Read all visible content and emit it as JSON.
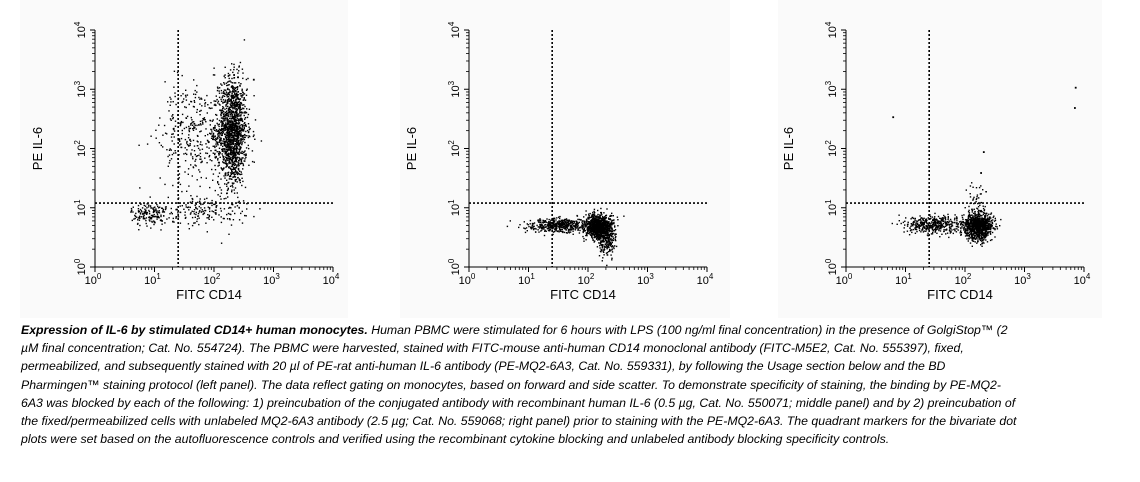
{
  "chart_data": [
    {
      "type": "scatter",
      "panel": "left",
      "xlabel": "FITC CD14",
      "ylabel": "PE IL-6",
      "xscale": "log",
      "yscale": "log",
      "xlim": [
        1,
        10000
      ],
      "ylim": [
        1,
        10000
      ],
      "xticks": [
        "10",
        "10",
        "10",
        "10",
        "10"
      ],
      "xtick_exponents": [
        "0",
        "1",
        "2",
        "3",
        "4"
      ],
      "yticks": [
        "10",
        "10",
        "10",
        "10",
        "10"
      ],
      "ytick_exponents": [
        "0",
        "1",
        "2",
        "3",
        "4"
      ],
      "quadrant_x": 25,
      "quadrant_y": 12,
      "clusters": [
        {
          "x": 200,
          "y": 200,
          "x_spread": 0.12,
          "y_spread": 0.45,
          "n": 1400
        },
        {
          "x": 60,
          "y": 150,
          "x_spread": 0.35,
          "y_spread": 0.45,
          "n": 350
        },
        {
          "x": 8,
          "y": 8,
          "x_spread": 0.15,
          "y_spread": 0.1,
          "n": 160
        },
        {
          "x": 70,
          "y": 9,
          "x_spread": 0.35,
          "y_spread": 0.12,
          "n": 160
        },
        {
          "x": 30,
          "y": 400,
          "x_spread": 0.35,
          "y_spread": 0.3,
          "n": 60
        }
      ],
      "points": [
        [
          450,
          1500
        ],
        [
          210,
          1800
        ],
        [
          245,
          1650
        ]
      ]
    },
    {
      "type": "scatter",
      "panel": "middle",
      "xlabel": "FITC CD14",
      "ylabel": "PE IL-6",
      "xscale": "log",
      "yscale": "log",
      "xlim": [
        1,
        10000
      ],
      "ylim": [
        1,
        10000
      ],
      "xticks": [
        "10",
        "10",
        "10",
        "10",
        "10"
      ],
      "xtick_exponents": [
        "0",
        "1",
        "2",
        "3",
        "4"
      ],
      "yticks": [
        "10",
        "10",
        "10",
        "10",
        "10"
      ],
      "ytick_exponents": [
        "0",
        "1",
        "2",
        "3",
        "4"
      ],
      "quadrant_x": 25,
      "quadrant_y": 12,
      "clusters": [
        {
          "x": 150,
          "y": 5,
          "x_spread": 0.12,
          "y_spread": 0.1,
          "n": 900
        },
        {
          "x": 30,
          "y": 5.2,
          "x_spread": 0.25,
          "y_spread": 0.06,
          "n": 450
        },
        {
          "x": 200,
          "y": 2.8,
          "x_spread": 0.08,
          "y_spread": 0.12,
          "n": 200
        }
      ],
      "points": []
    },
    {
      "type": "scatter",
      "panel": "right",
      "xlabel": "FITC CD14",
      "ylabel": "PE IL-6",
      "xscale": "log",
      "yscale": "log",
      "xlim": [
        1,
        10000
      ],
      "ylim": [
        1,
        10000
      ],
      "xticks": [
        "10",
        "10",
        "10",
        "10",
        "10"
      ],
      "xtick_exponents": [
        "0",
        "1",
        "2",
        "3",
        "4"
      ],
      "yticks": [
        "10",
        "10",
        "10",
        "10",
        "10"
      ],
      "ytick_exponents": [
        "0",
        "1",
        "2",
        "3",
        "4"
      ],
      "quadrant_x": 25,
      "quadrant_y": 12,
      "clusters": [
        {
          "x": 160,
          "y": 5,
          "x_spread": 0.12,
          "y_spread": 0.12,
          "n": 900
        },
        {
          "x": 30,
          "y": 5.3,
          "x_spread": 0.25,
          "y_spread": 0.07,
          "n": 420
        },
        {
          "x": 160,
          "y": 15,
          "x_spread": 0.08,
          "y_spread": 0.15,
          "n": 40
        }
      ],
      "points": [
        [
          7000,
          1100
        ],
        [
          6800,
          500
        ],
        [
          200,
          90
        ],
        [
          6,
          350
        ],
        [
          180,
          40
        ]
      ]
    }
  ],
  "caption": {
    "lead": "Expression of IL-6 by stimulated CD14+  human monocytes.",
    "body": " Human PBMC were stimulated for 6 hours with LPS (100 ng/ml final concentration) in the presence of GolgiStop™ (2 µM final concentration; Cat. No. 554724). The PBMC were harvested, stained with FITC-mouse anti-human CD14 monoclonal antibody (FITC-M5E2, Cat. No. 555397), fixed, permeabilized, and subsequently stained with 20 µl of PE-rat anti-human IL-6 antibody (PE-MQ2-6A3, Cat. No. 559331), by following the Usage section below and the BD Pharmingen™ staining protocol (left panel). The data reflect gating on monocytes, based on forward and side scatter. To demonstrate specificity of staining, the binding by PE-MQ2-6A3 was blocked by each of the following: 1) preincubation of the conjugated antibody with recombinant human IL-6 (0.5 µg, Cat. No. 550071; middle panel) and by 2) preincubation of the fixed/permeabilized cells with unlabeled MQ2-6A3 antibody (2.5 µg; Cat. No. 559068; right panel) prior to staining with the PE-MQ2-6A3. The quadrant markers for the bivariate dot plots were set based on the autofluorescence controls and verified using the recombinant cytokine blocking and unlabeled antibody blocking specificity controls."
  }
}
